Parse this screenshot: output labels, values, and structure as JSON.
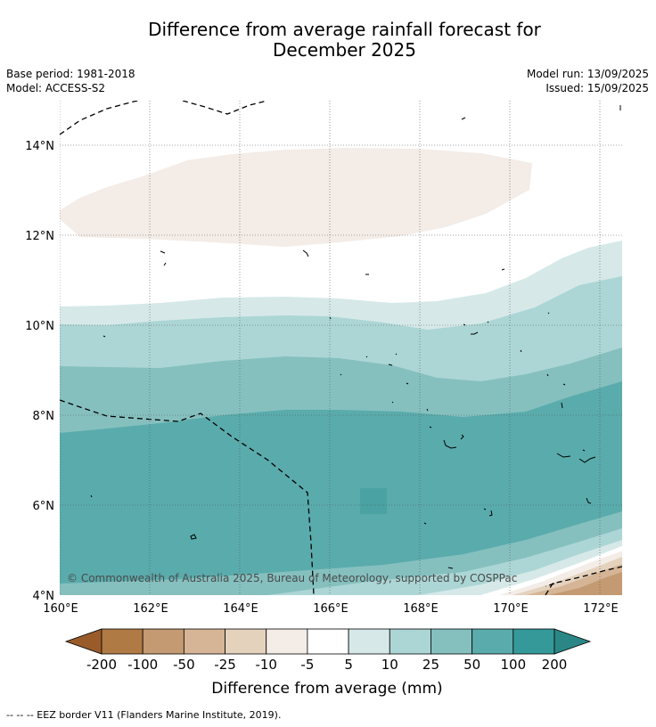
{
  "title_line1": "Difference from average rainfall forecast for",
  "title_line2": "December 2025",
  "base_period": "Base period: 1981-2018",
  "model": "Model: ACCESS-S2",
  "model_run": "Model run: 13/09/2025",
  "issued": "Issued: 15/09/2025",
  "copyright": "© Commonwealth of Australia 2025, Bureau of Meteorology, supported by COSPPac",
  "footer_note": "--  --  -- EEZ border V11 (Flanders Marine Institute, 2019).",
  "map": {
    "lon_range": [
      160,
      172.5
    ],
    "lat_range": [
      4,
      15
    ],
    "lon_ticks": [
      "160°E",
      "162°E",
      "164°E",
      "166°E",
      "168°E",
      "170°E",
      "172°E"
    ],
    "lat_ticks": [
      "4°N",
      "6°N",
      "8°N",
      "10°N",
      "12°N",
      "14°N"
    ]
  },
  "colorbar": {
    "label": "Difference from average (mm)",
    "tick_labels": [
      "-200",
      "-100",
      "-50",
      "-25",
      "-10",
      "-5",
      "5",
      "10",
      "25",
      "50",
      "100",
      "200"
    ],
    "colors": [
      "#9a5b2a",
      "#b07a44",
      "#c39a72",
      "#d5b596",
      "#e4d2bd",
      "#f3ece7",
      "#ffffff",
      "#d6e9e8",
      "#acd6d5",
      "#85c0bf",
      "#5aabac",
      "#35999a",
      "#2a8786"
    ]
  }
}
